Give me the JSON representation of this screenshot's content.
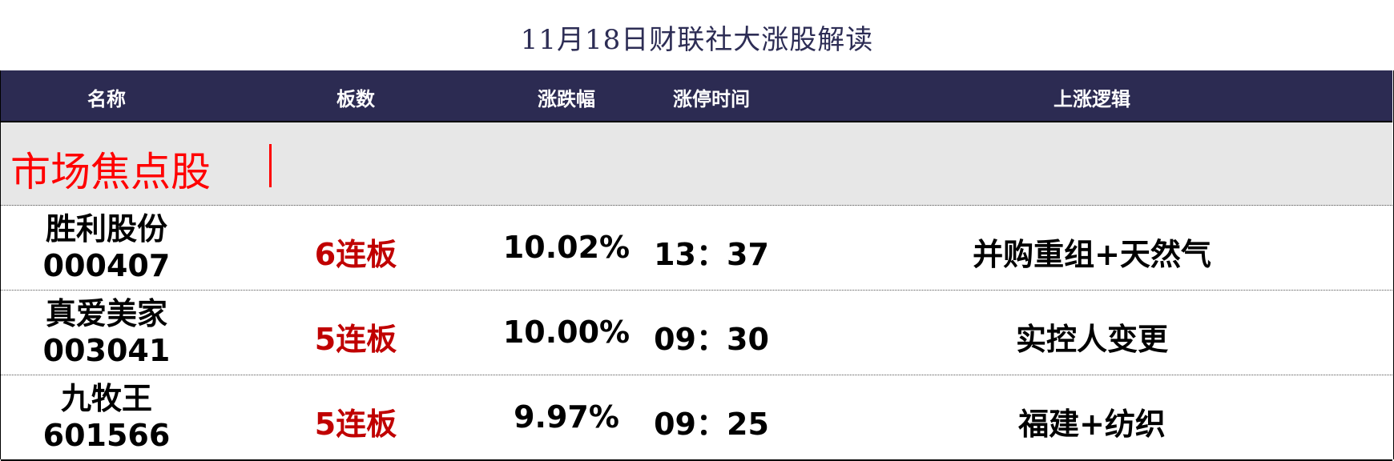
{
  "title": "11月18日财联社大涨股解读",
  "columns": [
    "名称",
    "板数",
    "涨跌幅",
    "涨停时间",
    "上涨逻辑"
  ],
  "section": {
    "label": "市场焦点股",
    "color": "#ff0000"
  },
  "colors": {
    "header_bg": "#2c2b52",
    "section_bg": "#e7e7e7",
    "board_text": "#c00000"
  },
  "rows": [
    {
      "name": "胜利股份",
      "code": "000407",
      "boards": "6连板",
      "change": "10.02%",
      "time": "13：37",
      "logic": "并购重组+天然气"
    },
    {
      "name": "真爱美家",
      "code": "003041",
      "boards": "5连板",
      "change": "10.00%",
      "time": "09：30",
      "logic": "实控人变更"
    },
    {
      "name": "九牧王",
      "code": "601566",
      "boards": "5连板",
      "change": "9.97%",
      "time": "09：25",
      "logic": "福建+纺织"
    }
  ]
}
